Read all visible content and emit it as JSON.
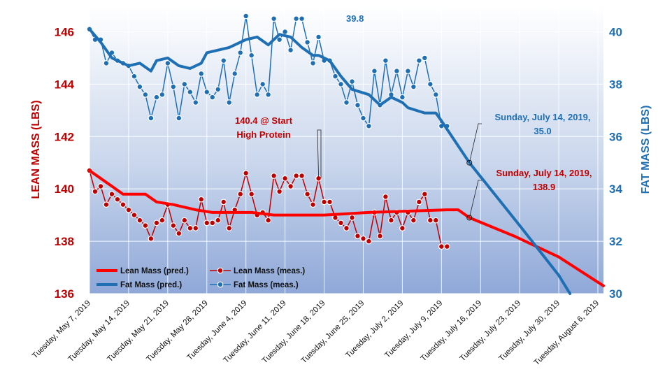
{
  "chart_data": {
    "type": "line",
    "xlabel": "",
    "ylabel_left": "LEAN MASS (LBS)",
    "ylabel_right": "FAT MASS (LBS)",
    "ylim_left": [
      136,
      147
    ],
    "ylim_right": [
      30,
      41
    ],
    "yticks_left": [
      "136",
      "138",
      "140",
      "142",
      "144",
      "146"
    ],
    "yticks_right": [
      "30",
      "32",
      "34",
      "36",
      "38",
      "40"
    ],
    "xlim_dates": [
      "2019-05-07",
      "2019-08-07"
    ],
    "x_tick_labels": [
      "Tuesday, May 7, 2019",
      "Tuesday, May 14, 2019",
      "Tuesday, May 21, 2019",
      "Tuesday, May 28, 2019",
      "Tuesday, June 4, 2019",
      "Tuesday, June 11, 2019",
      "Tuesday, June 18, 2019",
      "Tuesday, June 25, 2019",
      "Tuesday, July 2, 2019",
      "Tuesday, July 9, 2019",
      "Tuesday, July 16, 2019",
      "Tuesday, July 23, 2019",
      "Tuesday, July 30, 2019",
      "Tuesday, August 6, 2019"
    ],
    "x_tick_dates": [
      "2019-05-07",
      "2019-05-14",
      "2019-05-21",
      "2019-05-28",
      "2019-06-04",
      "2019-06-11",
      "2019-06-18",
      "2019-06-25",
      "2019-07-02",
      "2019-07-09",
      "2019-07-16",
      "2019-07-23",
      "2019-07-30",
      "2019-08-06"
    ],
    "grid": true,
    "legend_position": "bottom-left",
    "series": [
      {
        "name": "Lean Mass (pred.)",
        "axis": "left",
        "color": "#ff0000",
        "style": "line",
        "points": [
          [
            "2019-05-07",
            140.7
          ],
          [
            "2019-05-09",
            140.4
          ],
          [
            "2019-05-11",
            140.1
          ],
          [
            "2019-05-13",
            139.8
          ],
          [
            "2019-05-17",
            139.8
          ],
          [
            "2019-05-19",
            139.5
          ],
          [
            "2019-05-22",
            139.4
          ],
          [
            "2019-05-26",
            139.2
          ],
          [
            "2019-05-29",
            139.1
          ],
          [
            "2019-06-05",
            139.1
          ],
          [
            "2019-06-09",
            139.0
          ],
          [
            "2019-06-18",
            139.0
          ],
          [
            "2019-06-26",
            139.1
          ],
          [
            "2019-07-10",
            139.2
          ],
          [
            "2019-07-12",
            139.2
          ],
          [
            "2019-07-14",
            138.9
          ],
          [
            "2019-07-22",
            138.2
          ],
          [
            "2019-07-30",
            137.4
          ],
          [
            "2019-08-07",
            136.3
          ]
        ]
      },
      {
        "name": "Lean Mass (meas.)",
        "axis": "left",
        "color": "#c00000",
        "style": "line-markers",
        "points": [
          [
            "2019-05-07",
            140.7
          ],
          [
            "2019-05-08",
            139.9
          ],
          [
            "2019-05-09",
            140.1
          ],
          [
            "2019-05-10",
            139.4
          ],
          [
            "2019-05-11",
            139.8
          ],
          [
            "2019-05-12",
            139.6
          ],
          [
            "2019-05-13",
            139.4
          ],
          [
            "2019-05-14",
            139.2
          ],
          [
            "2019-05-15",
            139.0
          ],
          [
            "2019-05-16",
            138.8
          ],
          [
            "2019-05-17",
            138.6
          ],
          [
            "2019-05-18",
            138.1
          ],
          [
            "2019-05-19",
            138.7
          ],
          [
            "2019-05-20",
            138.8
          ],
          [
            "2019-05-21",
            139.4
          ],
          [
            "2019-05-22",
            138.6
          ],
          [
            "2019-05-23",
            138.3
          ],
          [
            "2019-05-24",
            138.8
          ],
          [
            "2019-05-25",
            138.5
          ],
          [
            "2019-05-26",
            138.5
          ],
          [
            "2019-05-27",
            139.6
          ],
          [
            "2019-05-28",
            138.7
          ],
          [
            "2019-05-29",
            138.7
          ],
          [
            "2019-05-30",
            138.8
          ],
          [
            "2019-05-31",
            139.5
          ],
          [
            "2019-06-01",
            138.5
          ],
          [
            "2019-06-02",
            139.2
          ],
          [
            "2019-06-03",
            139.8
          ],
          [
            "2019-06-04",
            140.6
          ],
          [
            "2019-06-05",
            139.8
          ],
          [
            "2019-06-06",
            139.0
          ],
          [
            "2019-06-07",
            139.1
          ],
          [
            "2019-06-08",
            138.8
          ],
          [
            "2019-06-09",
            140.5
          ],
          [
            "2019-06-10",
            139.9
          ],
          [
            "2019-06-11",
            140.4
          ],
          [
            "2019-06-12",
            140.1
          ],
          [
            "2019-06-13",
            140.5
          ],
          [
            "2019-06-14",
            140.5
          ],
          [
            "2019-06-15",
            139.8
          ],
          [
            "2019-06-16",
            139.4
          ],
          [
            "2019-06-17",
            140.4
          ],
          [
            "2019-06-18",
            139.5
          ],
          [
            "2019-06-19",
            139.5
          ],
          [
            "2019-06-20",
            138.9
          ],
          [
            "2019-06-21",
            138.7
          ],
          [
            "2019-06-22",
            138.5
          ],
          [
            "2019-06-23",
            138.9
          ],
          [
            "2019-06-24",
            138.2
          ],
          [
            "2019-06-25",
            138.1
          ],
          [
            "2019-06-26",
            138.0
          ],
          [
            "2019-06-27",
            139.1
          ],
          [
            "2019-06-28",
            138.2
          ],
          [
            "2019-06-29",
            139.7
          ],
          [
            "2019-06-30",
            138.8
          ],
          [
            "2019-07-01",
            139.1
          ],
          [
            "2019-07-02",
            138.5
          ],
          [
            "2019-07-03",
            139.1
          ],
          [
            "2019-07-04",
            138.8
          ],
          [
            "2019-07-05",
            139.5
          ],
          [
            "2019-07-06",
            139.8
          ],
          [
            "2019-07-07",
            138.8
          ],
          [
            "2019-07-08",
            138.8
          ],
          [
            "2019-07-09",
            137.8
          ],
          [
            "2019-07-10",
            137.8
          ]
        ]
      },
      {
        "name": "Fat Mass (pred.)",
        "axis": "right",
        "color": "#1f6fb4",
        "style": "line",
        "points": [
          [
            "2019-05-07",
            40.1
          ],
          [
            "2019-05-09",
            39.6
          ],
          [
            "2019-05-11",
            39.0
          ],
          [
            "2019-05-14",
            38.7
          ],
          [
            "2019-05-16",
            38.8
          ],
          [
            "2019-05-18",
            38.5
          ],
          [
            "2019-05-19",
            38.9
          ],
          [
            "2019-05-21",
            39.0
          ],
          [
            "2019-05-23",
            38.7
          ],
          [
            "2019-05-25",
            38.6
          ],
          [
            "2019-05-27",
            38.8
          ],
          [
            "2019-05-28",
            39.2
          ],
          [
            "2019-05-30",
            39.3
          ],
          [
            "2019-06-01",
            39.4
          ],
          [
            "2019-06-04",
            39.7
          ],
          [
            "2019-06-06",
            39.8
          ],
          [
            "2019-06-08",
            39.5
          ],
          [
            "2019-06-10",
            39.9
          ],
          [
            "2019-06-12",
            39.8
          ],
          [
            "2019-06-14",
            39.4
          ],
          [
            "2019-06-16",
            39.1
          ],
          [
            "2019-06-17",
            39.1
          ],
          [
            "2019-06-19",
            38.9
          ],
          [
            "2019-06-21",
            38.3
          ],
          [
            "2019-06-23",
            37.8
          ],
          [
            "2019-06-26",
            37.6
          ],
          [
            "2019-06-28",
            37.2
          ],
          [
            "2019-06-30",
            37.5
          ],
          [
            "2019-07-02",
            37.3
          ],
          [
            "2019-07-03",
            37.1
          ],
          [
            "2019-07-06",
            36.9
          ],
          [
            "2019-07-08",
            36.9
          ],
          [
            "2019-07-09",
            36.6
          ],
          [
            "2019-07-14",
            35.0
          ],
          [
            "2019-07-23",
            32.6
          ],
          [
            "2019-07-30",
            30.7
          ],
          [
            "2019-08-01",
            30.0
          ]
        ]
      },
      {
        "name": "Fat Mass (meas.)",
        "axis": "right",
        "color": "#1f6fb4",
        "style": "line-markers",
        "points": [
          [
            "2019-05-07",
            40.1
          ],
          [
            "2019-05-08",
            39.7
          ],
          [
            "2019-05-09",
            39.7
          ],
          [
            "2019-05-10",
            38.8
          ],
          [
            "2019-05-11",
            39.2
          ],
          [
            "2019-05-12",
            38.9
          ],
          [
            "2019-05-13",
            38.8
          ],
          [
            "2019-05-14",
            38.7
          ],
          [
            "2019-05-15",
            38.3
          ],
          [
            "2019-05-16",
            37.9
          ],
          [
            "2019-05-17",
            37.6
          ],
          [
            "2019-05-18",
            36.7
          ],
          [
            "2019-05-19",
            37.5
          ],
          [
            "2019-05-20",
            37.6
          ],
          [
            "2019-05-21",
            38.8
          ],
          [
            "2019-05-22",
            37.9
          ],
          [
            "2019-05-23",
            36.7
          ],
          [
            "2019-05-24",
            38.0
          ],
          [
            "2019-05-25",
            37.7
          ],
          [
            "2019-05-26",
            37.3
          ],
          [
            "2019-05-27",
            38.4
          ],
          [
            "2019-05-28",
            37.7
          ],
          [
            "2019-05-29",
            37.5
          ],
          [
            "2019-05-30",
            37.8
          ],
          [
            "2019-05-31",
            38.9
          ],
          [
            "2019-06-01",
            37.3
          ],
          [
            "2019-06-02",
            38.4
          ],
          [
            "2019-06-03",
            39.2
          ],
          [
            "2019-06-04",
            40.6
          ],
          [
            "2019-06-05",
            39.1
          ],
          [
            "2019-06-06",
            37.6
          ],
          [
            "2019-06-07",
            38.0
          ],
          [
            "2019-06-08",
            37.6
          ],
          [
            "2019-06-09",
            40.5
          ],
          [
            "2019-06-10",
            39.7
          ],
          [
            "2019-06-11",
            40.0
          ],
          [
            "2019-06-12",
            39.3
          ],
          [
            "2019-06-13",
            40.5
          ],
          [
            "2019-06-14",
            40.5
          ],
          [
            "2019-06-15",
            39.6
          ],
          [
            "2019-06-16",
            38.8
          ],
          [
            "2019-06-17",
            39.8
          ],
          [
            "2019-06-18",
            38.9
          ],
          [
            "2019-06-19",
            38.9
          ],
          [
            "2019-06-20",
            38.3
          ],
          [
            "2019-06-21",
            38.0
          ],
          [
            "2019-06-22",
            37.3
          ],
          [
            "2019-06-23",
            38.1
          ],
          [
            "2019-06-24",
            37.2
          ],
          [
            "2019-06-25",
            36.7
          ],
          [
            "2019-06-26",
            36.4
          ],
          [
            "2019-06-27",
            38.5
          ],
          [
            "2019-06-28",
            37.2
          ],
          [
            "2019-06-29",
            38.9
          ],
          [
            "2019-06-30",
            37.6
          ],
          [
            "2019-07-01",
            38.5
          ],
          [
            "2019-07-02",
            37.5
          ],
          [
            "2019-07-03",
            38.5
          ],
          [
            "2019-07-04",
            37.9
          ],
          [
            "2019-07-05",
            38.9
          ],
          [
            "2019-07-06",
            39.0
          ],
          [
            "2019-07-07",
            38.0
          ],
          [
            "2019-07-08",
            37.6
          ],
          [
            "2019-07-09",
            36.4
          ],
          [
            "2019-07-10",
            36.4
          ]
        ]
      }
    ],
    "annotations": [
      {
        "lines": [
          "39.8"
        ],
        "color": "#1f6fb4",
        "axis": "right",
        "point": [
          "2019-06-17",
          39.8
        ]
      },
      {
        "lines": [
          "140.4 @ Start",
          "High Protein"
        ],
        "color": "#c00000",
        "axis": "left",
        "point": [
          "2019-06-17",
          140.4
        ]
      },
      {
        "lines": [
          "Sunday, July 14, 2019,",
          "35.0"
        ],
        "color": "#1f6fb4",
        "axis": "right",
        "point": [
          "2019-07-14",
          35.0
        ]
      },
      {
        "lines": [
          "Sunday, July 14, 2019,",
          "138.9"
        ],
        "color": "#c00000",
        "axis": "left",
        "point": [
          "2019-07-14",
          138.9
        ]
      }
    ]
  }
}
